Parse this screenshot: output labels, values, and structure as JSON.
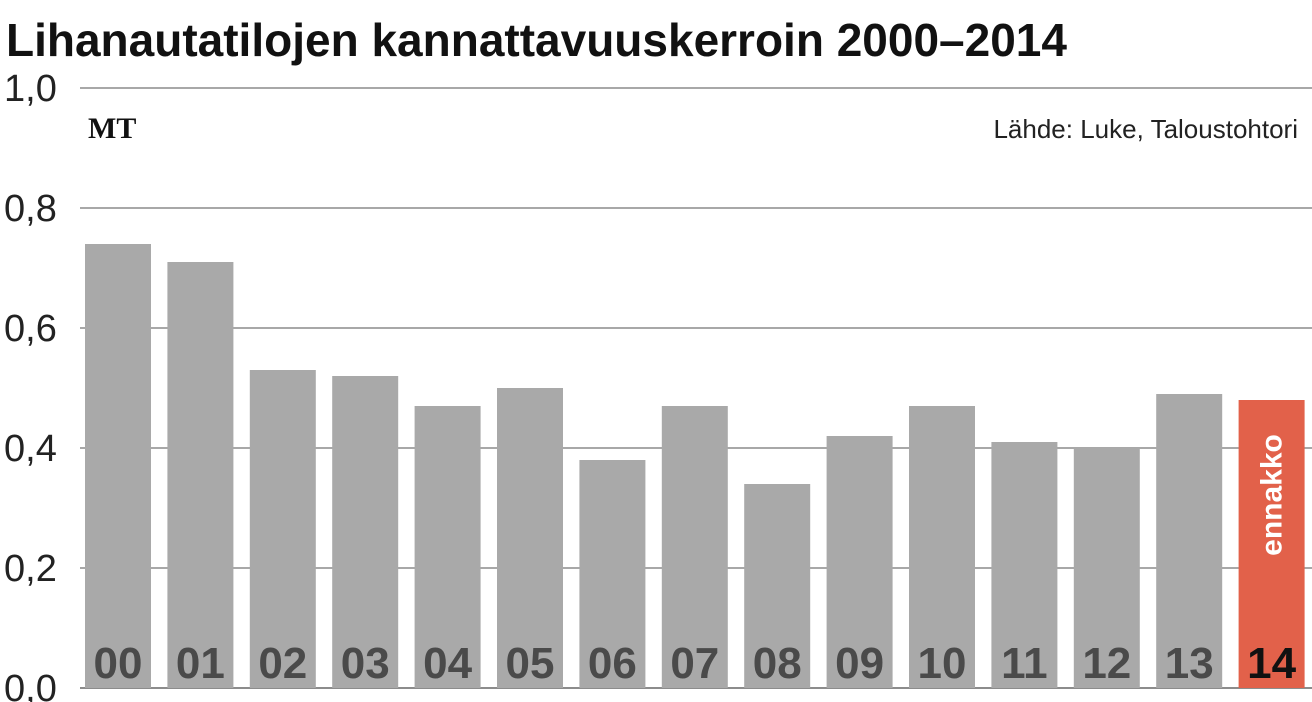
{
  "chart_data": {
    "type": "bar",
    "title": "Lihanautatilojen kannattavuuskerroin 2000–2014",
    "categories": [
      "00",
      "01",
      "02",
      "03",
      "04",
      "05",
      "06",
      "07",
      "08",
      "09",
      "10",
      "11",
      "12",
      "13",
      "14"
    ],
    "values": [
      0.74,
      0.71,
      0.53,
      0.52,
      0.47,
      0.5,
      0.38,
      0.47,
      0.34,
      0.42,
      0.47,
      0.41,
      0.4,
      0.49,
      0.48
    ],
    "ylim": [
      0,
      1.0
    ],
    "yticks": [
      {
        "value": 0.0,
        "label": "0,0"
      },
      {
        "value": 0.2,
        "label": "0,2"
      },
      {
        "value": 0.4,
        "label": "0,4"
      },
      {
        "value": 0.6,
        "label": "0,6"
      },
      {
        "value": 0.8,
        "label": "0,8"
      },
      {
        "value": 1.0,
        "label": "1,0"
      }
    ],
    "grid": true,
    "highlight_index": 14,
    "annotation": "ennakko",
    "source": "Lähde: Luke, Taloustohtori",
    "logo": "MT",
    "colors": {
      "bar": "#a9a9a9",
      "highlight": "#e2614a",
      "grid": "#8c8c8c",
      "text": "#222222"
    }
  }
}
